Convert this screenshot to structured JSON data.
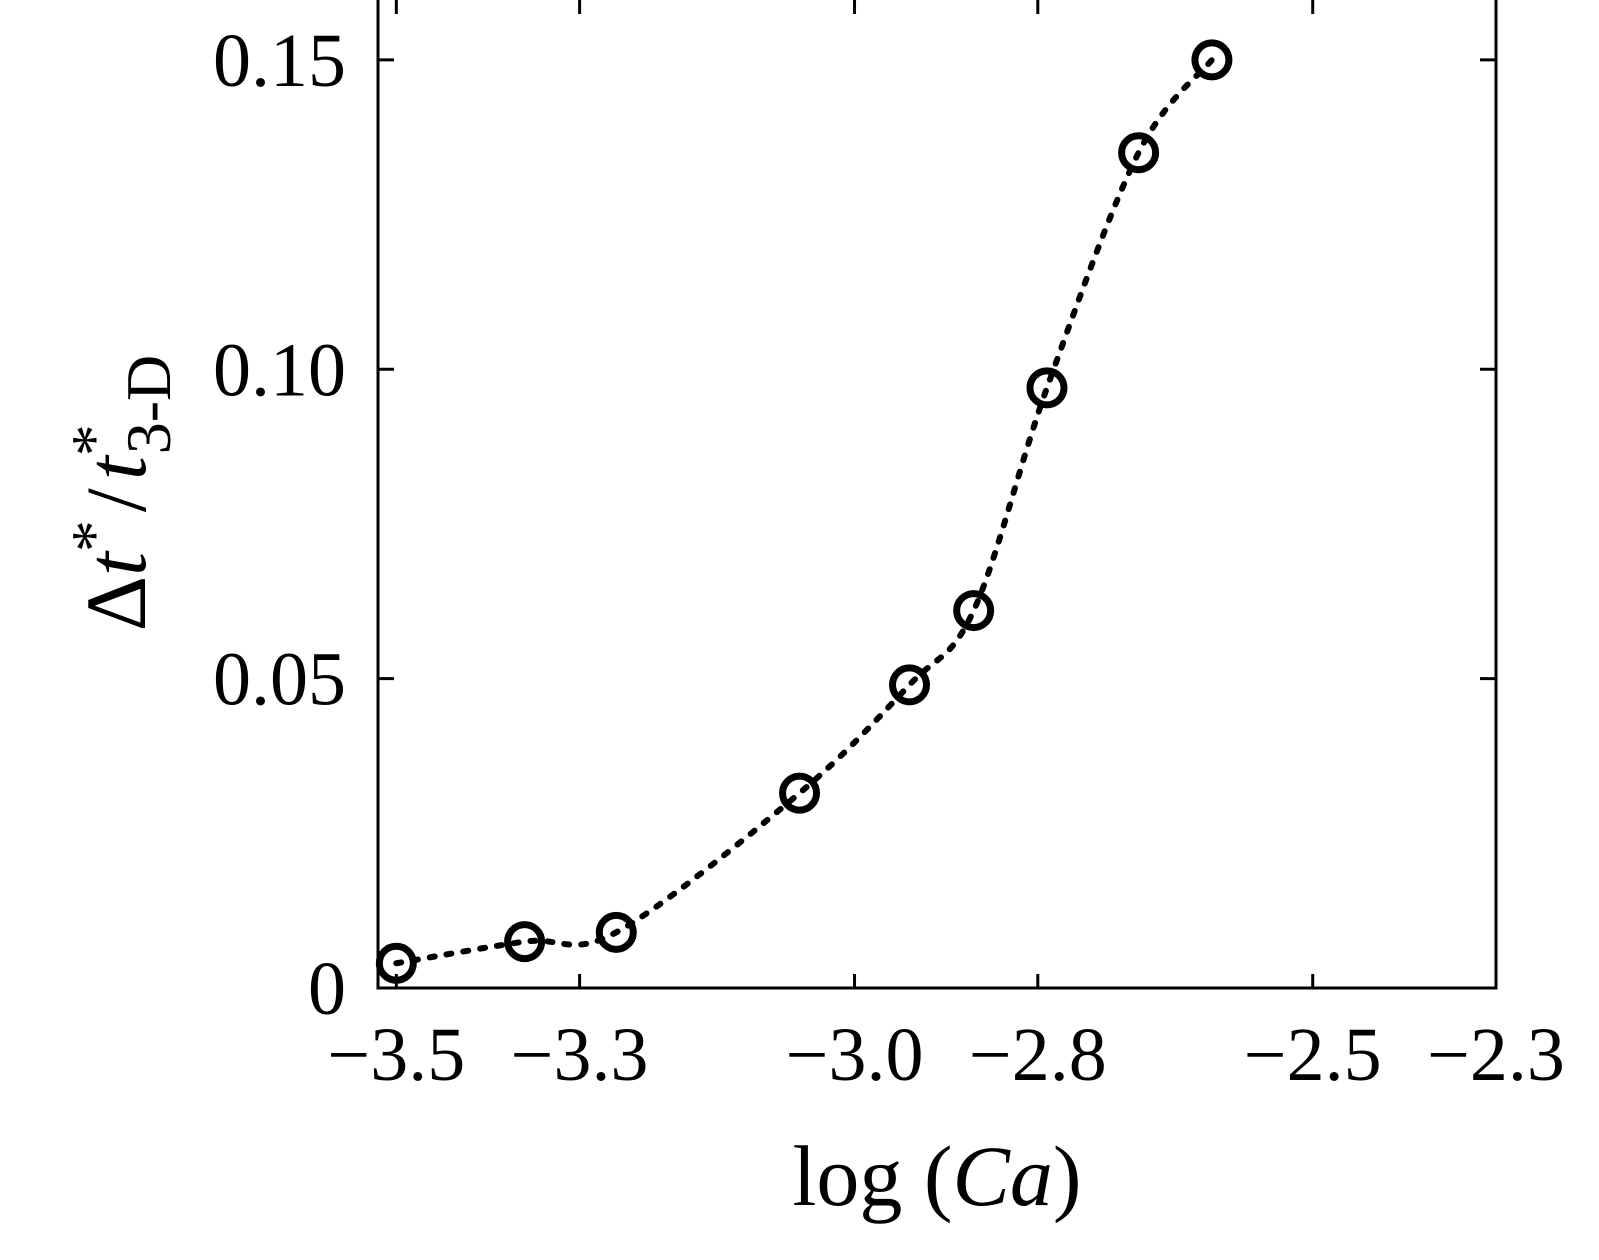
{
  "chart_data": {
    "type": "scatter",
    "line_style": "dotted",
    "marker": "open-circle",
    "xlim": [
      -3.52,
      -2.3
    ],
    "ylim": [
      0,
      0.16
    ],
    "x_ticks": [
      -3.5,
      -3.3,
      -3.0,
      -2.8,
      -2.5,
      -2.3
    ],
    "x_tick_labels": [
      "−3.5",
      "−3.3",
      "−3.0",
      "−2.8",
      "−2.5",
      "−2.3"
    ],
    "y_ticks": [
      0,
      0.05,
      0.1,
      0.15
    ],
    "y_tick_labels": [
      "0",
      "0.05",
      "0.10",
      "0.15"
    ],
    "xlabel": {
      "prefix": "log (",
      "italic": "Ca",
      "suffix": ")"
    },
    "ylabel": {
      "delta": "Δ",
      "t1": "t",
      "sup1": "*",
      "slash": "/",
      "t2": "t",
      "sup2": "*",
      "sub2": "3-D"
    },
    "series": [
      {
        "x": [
          -3.5,
          -3.36,
          -3.26,
          -3.06,
          -2.94,
          -2.87,
          -2.79,
          -2.69,
          -2.61
        ],
        "y": [
          0.004,
          0.0075,
          0.009,
          0.0315,
          0.049,
          0.061,
          0.097,
          0.135,
          0.15
        ]
      }
    ],
    "grid": false,
    "legend": "none"
  }
}
